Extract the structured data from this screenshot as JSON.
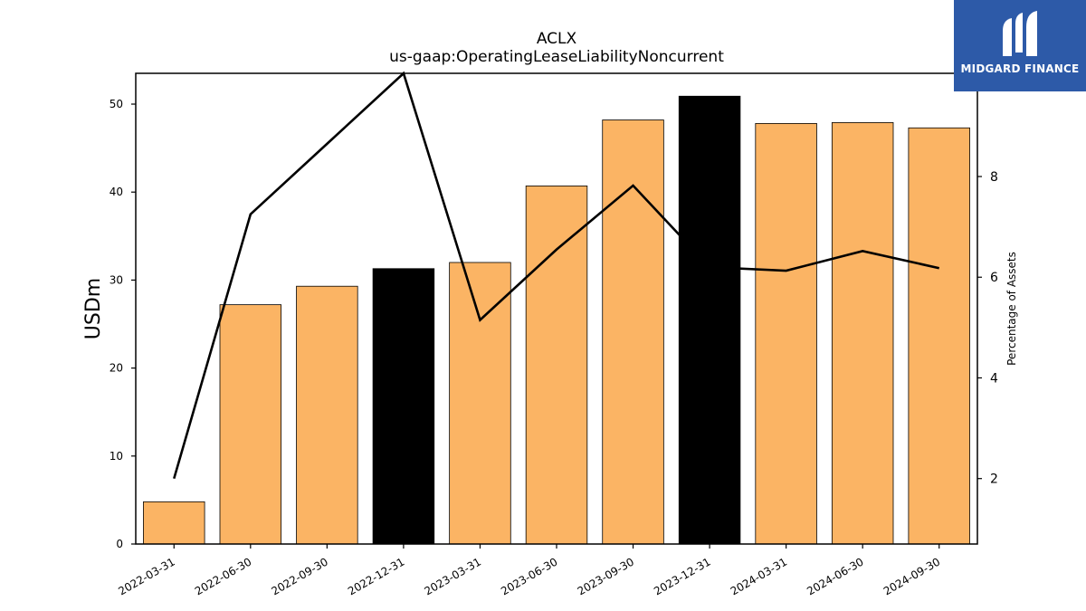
{
  "chart_data": {
    "type": "bar",
    "title": "ACLX",
    "subtitle": "us-gaap:OperatingLeaseLiabilityNoncurrent",
    "ylabel": "USDm",
    "y2label": "Percentage of Assets",
    "categories": [
      "2022-03-31",
      "2022-06-30",
      "2022-09-30",
      "2022-12-31",
      "2023-03-31",
      "2023-06-30",
      "2023-09-30",
      "2023-12-31",
      "2024-03-31",
      "2024-06-30",
      "2024-09-30"
    ],
    "series": [
      {
        "type": "bar",
        "values": [
          4.8,
          27.2,
          29.3,
          31.3,
          32.0,
          40.7,
          48.2,
          50.9,
          47.8,
          47.9,
          47.3
        ]
      },
      {
        "type": "line",
        "axis": "right",
        "values": [
          2.0,
          7.25,
          8.65,
          10.05,
          5.15,
          6.55,
          7.82,
          6.2,
          6.13,
          6.52,
          6.18
        ]
      }
    ],
    "bar_colors": [
      "#fbb464",
      "#fbb464",
      "#fbb464",
      "#000000",
      "#fbb464",
      "#fbb464",
      "#fbb464",
      "#000000",
      "#fbb464",
      "#fbb464",
      "#fbb464"
    ],
    "line_color": "#000000",
    "ylim": [
      0,
      53.5
    ],
    "y2lim": [
      0.7,
      10.05
    ],
    "yticks": [
      0,
      10,
      20,
      30,
      40,
      50
    ],
    "y2ticks": [
      2,
      4,
      6,
      8
    ],
    "grid": false,
    "legend": "none"
  },
  "logo": {
    "text": "MIDGARD FINANCE",
    "background": "#2d5aa8"
  }
}
